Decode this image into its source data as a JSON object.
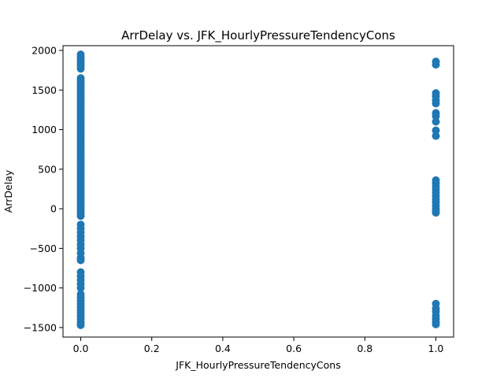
{
  "chart_data": {
    "type": "scatter",
    "title": "ArrDelay vs. JFK_HourlyPressureTendencyCons",
    "xlabel": "JFK_HourlyPressureTendencyCons",
    "ylabel": "ArrDelay",
    "xlim": [
      -0.05,
      1.05
    ],
    "ylim": [
      -1620,
      2060
    ],
    "xticks": [
      0.0,
      0.2,
      0.4,
      0.6,
      0.8,
      1.0
    ],
    "xtick_labels": [
      "0.0",
      "0.2",
      "0.4",
      "0.6",
      "0.8",
      "1.0"
    ],
    "yticks": [
      -1500,
      -1000,
      -500,
      0,
      500,
      1000,
      1500,
      2000
    ],
    "ytick_labels": [
      "−1500",
      "−1000",
      "−500",
      "0",
      "500",
      "1000",
      "1500",
      "2000"
    ],
    "grid": false,
    "color": "#1f77b4",
    "series": [
      {
        "points": [
          [
            0,
            1950
          ],
          [
            0,
            1920
          ],
          [
            0,
            1890
          ],
          [
            0,
            1860
          ],
          [
            0,
            1830
          ],
          [
            0,
            1800
          ],
          [
            0,
            1770
          ],
          [
            0,
            1650
          ],
          [
            0,
            1620
          ],
          [
            0,
            1590
          ],
          [
            0,
            1560
          ],
          [
            0,
            1530
          ],
          [
            0,
            1500
          ],
          [
            0,
            1470
          ],
          [
            0,
            1440
          ],
          [
            0,
            1410
          ],
          [
            0,
            1380
          ],
          [
            0,
            1350
          ],
          [
            0,
            1320
          ],
          [
            0,
            1290
          ],
          [
            0,
            1260
          ],
          [
            0,
            1230
          ],
          [
            0,
            1200
          ],
          [
            0,
            1170
          ],
          [
            0,
            1140
          ],
          [
            0,
            1110
          ],
          [
            0,
            1080
          ],
          [
            0,
            1050
          ],
          [
            0,
            1020
          ],
          [
            0,
            990
          ],
          [
            0,
            960
          ],
          [
            0,
            930
          ],
          [
            0,
            900
          ],
          [
            0,
            870
          ],
          [
            0,
            840
          ],
          [
            0,
            810
          ],
          [
            0,
            780
          ],
          [
            0,
            750
          ],
          [
            0,
            720
          ],
          [
            0,
            690
          ],
          [
            0,
            660
          ],
          [
            0,
            630
          ],
          [
            0,
            600
          ],
          [
            0,
            570
          ],
          [
            0,
            540
          ],
          [
            0,
            510
          ],
          [
            0,
            480
          ],
          [
            0,
            450
          ],
          [
            0,
            420
          ],
          [
            0,
            390
          ],
          [
            0,
            360
          ],
          [
            0,
            330
          ],
          [
            0,
            300
          ],
          [
            0,
            270
          ],
          [
            0,
            240
          ],
          [
            0,
            210
          ],
          [
            0,
            180
          ],
          [
            0,
            150
          ],
          [
            0,
            120
          ],
          [
            0,
            90
          ],
          [
            0,
            60
          ],
          [
            0,
            30
          ],
          [
            0,
            0
          ],
          [
            0,
            -30
          ],
          [
            0,
            -60
          ],
          [
            0,
            -90
          ],
          [
            0,
            -200
          ],
          [
            0,
            -250
          ],
          [
            0,
            -300
          ],
          [
            0,
            -350
          ],
          [
            0,
            -400
          ],
          [
            0,
            -450
          ],
          [
            0,
            -500
          ],
          [
            0,
            -560
          ],
          [
            0,
            -620
          ],
          [
            0,
            -650
          ],
          [
            0,
            -800
          ],
          [
            0,
            -850
          ],
          [
            0,
            -900
          ],
          [
            0,
            -950
          ],
          [
            0,
            -1000
          ],
          [
            0,
            -1080
          ],
          [
            0,
            -1120
          ],
          [
            0,
            -1160
          ],
          [
            0,
            -1200
          ],
          [
            0,
            -1240
          ],
          [
            0,
            -1280
          ],
          [
            0,
            -1320
          ],
          [
            0,
            -1360
          ],
          [
            0,
            -1400
          ],
          [
            0,
            -1440
          ],
          [
            0,
            -1470
          ],
          [
            1,
            1860
          ],
          [
            1,
            1820
          ],
          [
            1,
            1460
          ],
          [
            1,
            1420
          ],
          [
            1,
            1370
          ],
          [
            1,
            1330
          ],
          [
            1,
            1210
          ],
          [
            1,
            1170
          ],
          [
            1,
            1100
          ],
          [
            1,
            990
          ],
          [
            1,
            920
          ],
          [
            1,
            360
          ],
          [
            1,
            320
          ],
          [
            1,
            280
          ],
          [
            1,
            240
          ],
          [
            1,
            200
          ],
          [
            1,
            160
          ],
          [
            1,
            120
          ],
          [
            1,
            80
          ],
          [
            1,
            40
          ],
          [
            1,
            0
          ],
          [
            1,
            -30
          ],
          [
            1,
            -50
          ],
          [
            1,
            -1200
          ],
          [
            1,
            -1260
          ],
          [
            1,
            -1300
          ],
          [
            1,
            -1350
          ],
          [
            1,
            -1390
          ],
          [
            1,
            -1430
          ],
          [
            1,
            -1460
          ]
        ]
      }
    ]
  }
}
